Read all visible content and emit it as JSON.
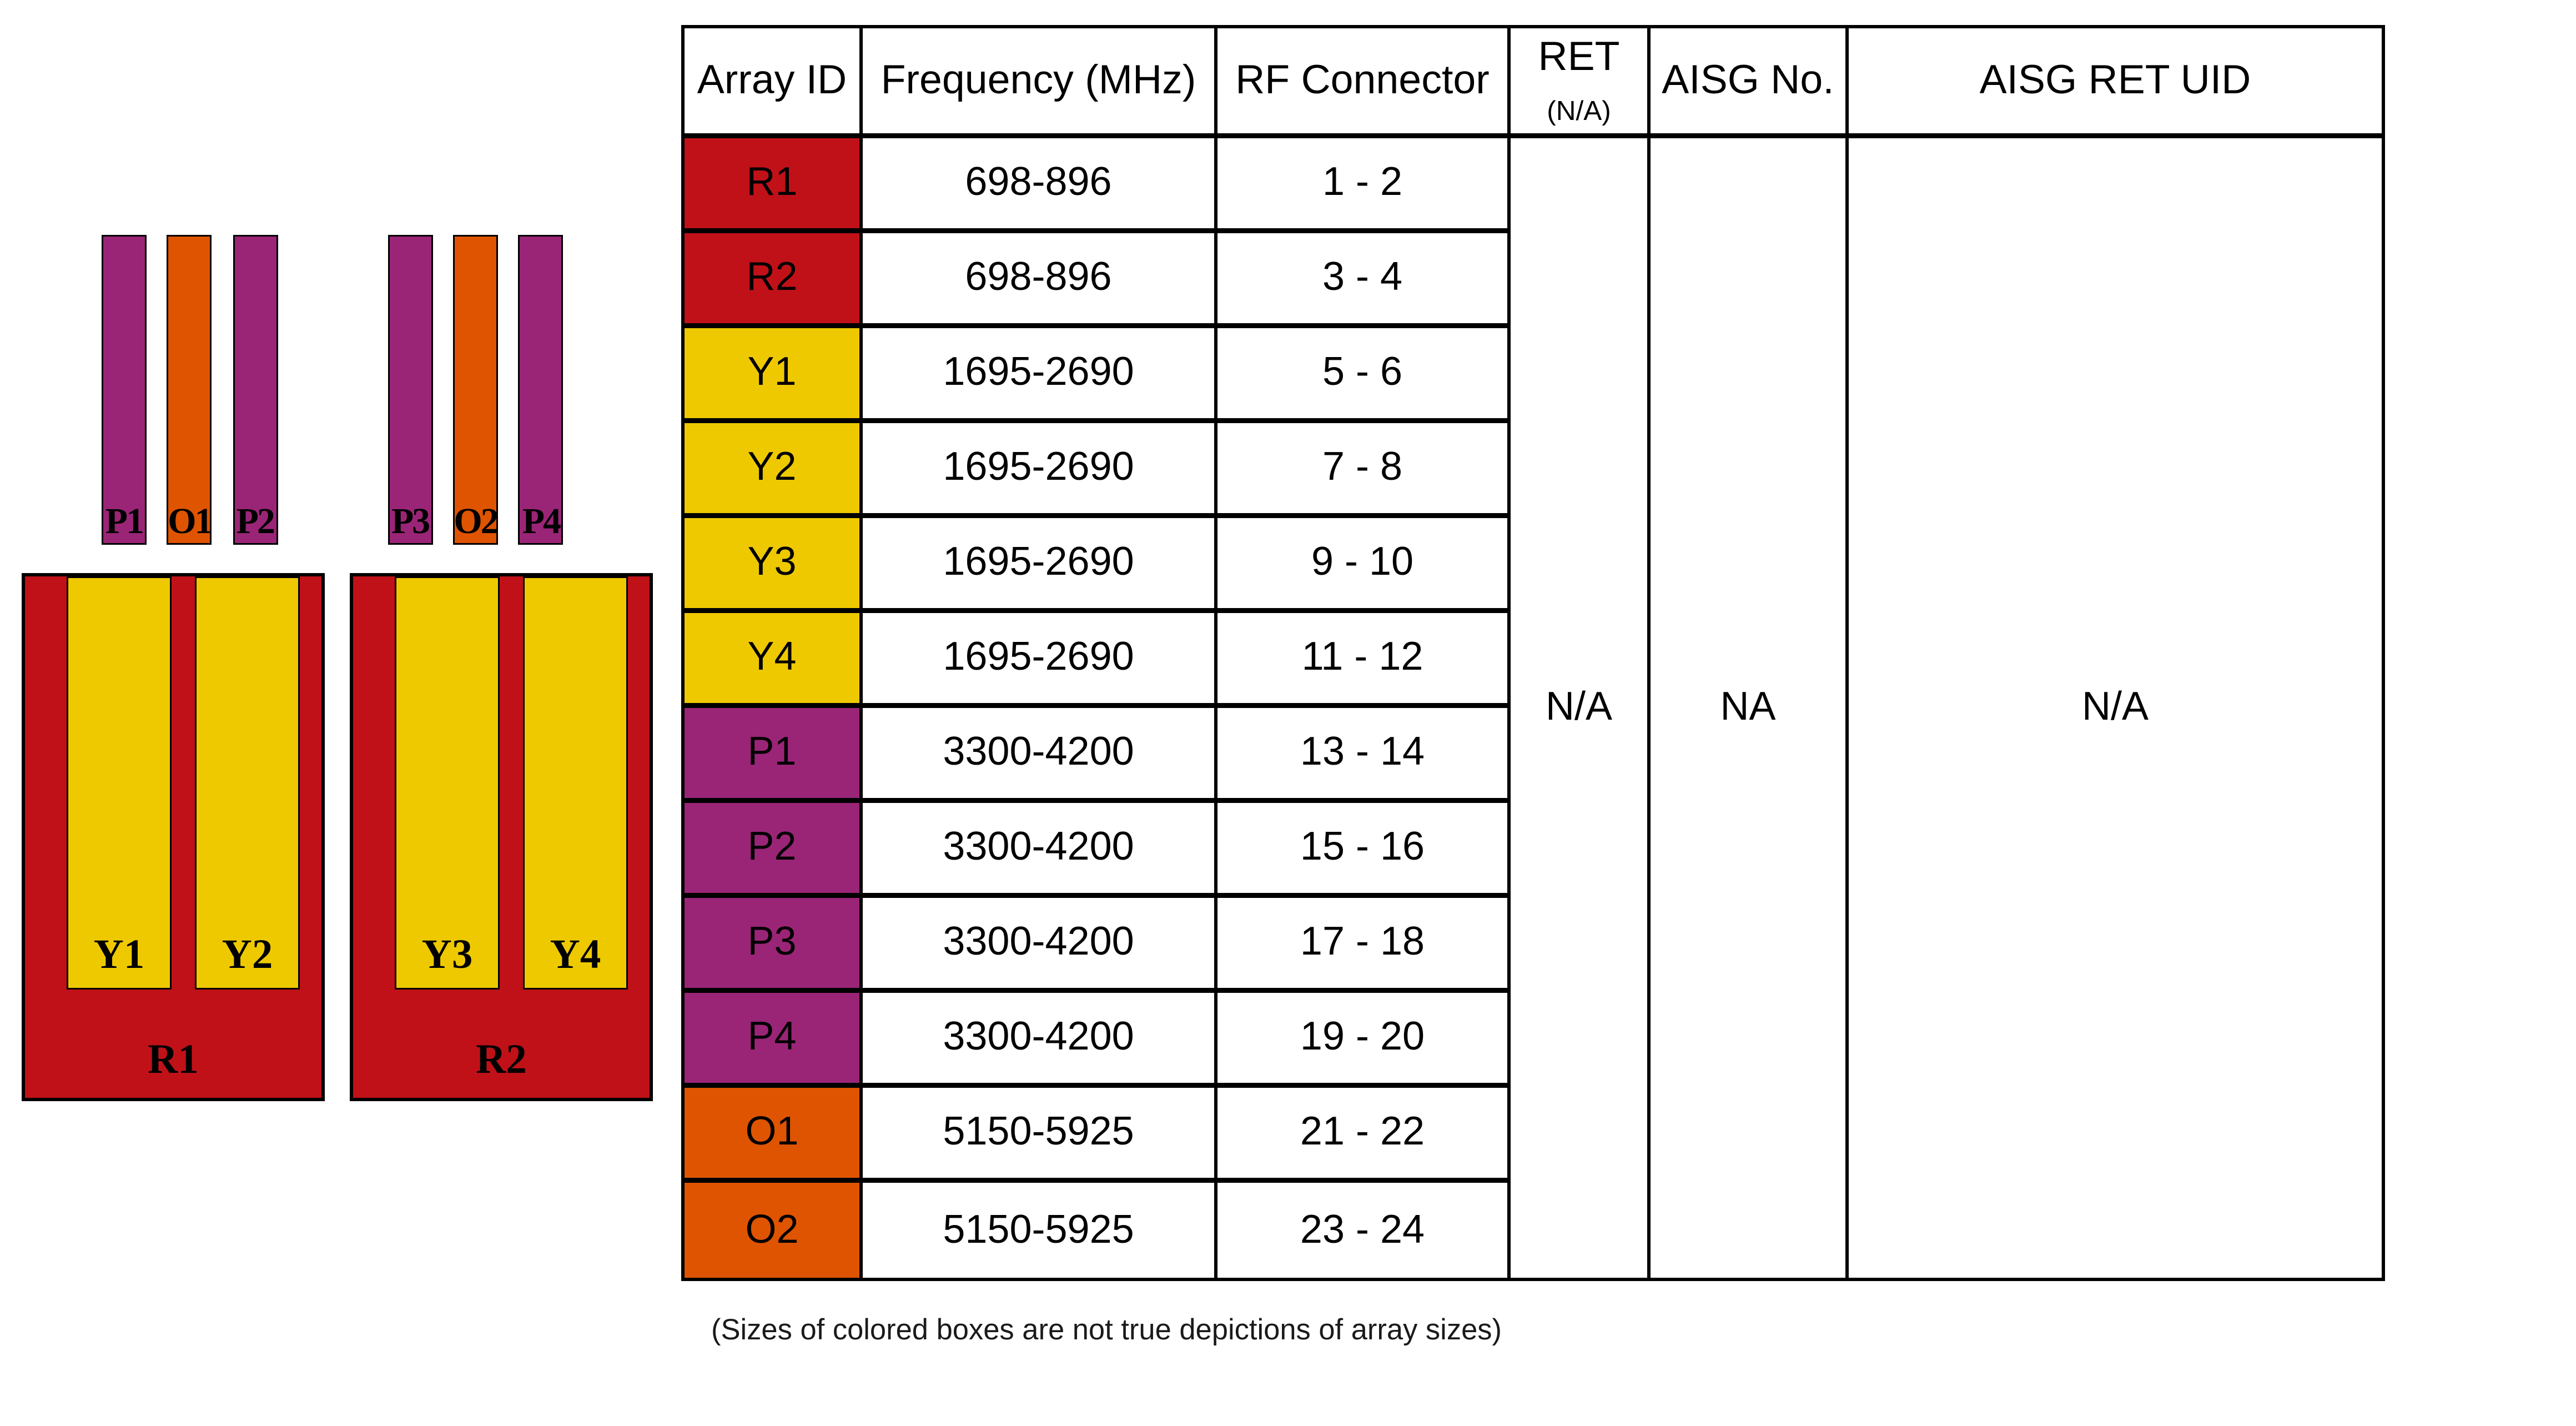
{
  "colors": {
    "red": "#c01118",
    "yellow": "#efc900",
    "orange": "#df5400",
    "purple": "#9a2577",
    "border": "#000000"
  },
  "diagram": {
    "bars": [
      {
        "label": "P1",
        "color": "purple"
      },
      {
        "label": "O1",
        "color": "orange"
      },
      {
        "label": "P2",
        "color": "purple"
      },
      {
        "label": "P3",
        "color": "purple"
      },
      {
        "label": "O2",
        "color": "orange"
      },
      {
        "label": "P4",
        "color": "purple"
      }
    ],
    "panels": [
      {
        "label": "R1",
        "color": "red",
        "children": [
          {
            "label": "Y1",
            "color": "yellow"
          },
          {
            "label": "Y2",
            "color": "yellow"
          }
        ]
      },
      {
        "label": "R2",
        "color": "red",
        "children": [
          {
            "label": "Y3",
            "color": "yellow"
          },
          {
            "label": "Y4",
            "color": "yellow"
          }
        ]
      }
    ]
  },
  "table": {
    "headers": {
      "array_id": "Array ID",
      "frequency": "Frequency (MHz)",
      "rf_connector": "RF Connector",
      "ret": "RET",
      "ret_sub": "(N/A)",
      "aisg_no": "AISG No.",
      "aisg_ret_uid": "AISG RET UID"
    },
    "rows": [
      {
        "array_id": "R1",
        "color": "red",
        "frequency": "698-896",
        "rf_connector": "1 - 2"
      },
      {
        "array_id": "R2",
        "color": "red",
        "frequency": "698-896",
        "rf_connector": "3 - 4"
      },
      {
        "array_id": "Y1",
        "color": "yellow",
        "frequency": "1695-2690",
        "rf_connector": "5 - 6"
      },
      {
        "array_id": "Y2",
        "color": "yellow",
        "frequency": "1695-2690",
        "rf_connector": "7 - 8"
      },
      {
        "array_id": "Y3",
        "color": "yellow",
        "frequency": "1695-2690",
        "rf_connector": "9 - 10"
      },
      {
        "array_id": "Y4",
        "color": "yellow",
        "frequency": "1695-2690",
        "rf_connector": "11 - 12"
      },
      {
        "array_id": "P1",
        "color": "purple",
        "frequency": "3300-4200",
        "rf_connector": "13 - 14"
      },
      {
        "array_id": "P2",
        "color": "purple",
        "frequency": "3300-4200",
        "rf_connector": "15 - 16"
      },
      {
        "array_id": "P3",
        "color": "purple",
        "frequency": "3300-4200",
        "rf_connector": "17 - 18"
      },
      {
        "array_id": "P4",
        "color": "purple",
        "frequency": "3300-4200",
        "rf_connector": "19 - 20"
      },
      {
        "array_id": "O1",
        "color": "orange",
        "frequency": "5150-5925",
        "rf_connector": "21 - 22"
      },
      {
        "array_id": "O2",
        "color": "orange",
        "frequency": "5150-5925",
        "rf_connector": "23 - 24"
      }
    ],
    "merged": {
      "ret": "N/A",
      "aisg_no": "NA",
      "aisg_ret_uid": "N/A"
    }
  },
  "note": "(Sizes of colored boxes are not true depictions of array sizes)"
}
